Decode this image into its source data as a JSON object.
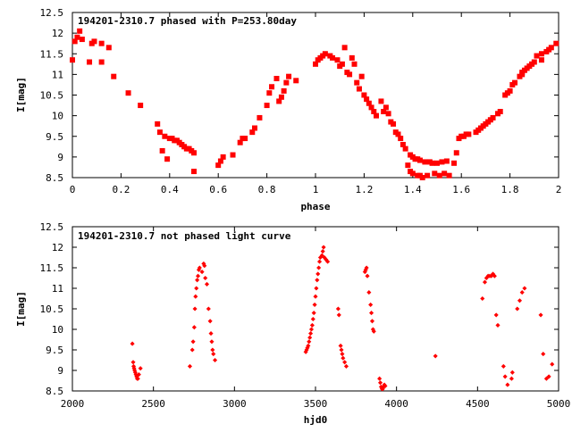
{
  "chart_data": [
    {
      "type": "scatter",
      "title": "194201-2310.7 phased with P=253.80day",
      "xlabel": "phase",
      "ylabel": "I[mag]",
      "xlim": [
        0,
        2
      ],
      "ylim": [
        12.5,
        8.5
      ],
      "y_inverted": true,
      "x_ticks": [
        0,
        0.2,
        0.4,
        0.6,
        0.8,
        1,
        1.2,
        1.4,
        1.6,
        1.8,
        2
      ],
      "x_tick_labels": [
        "0",
        "0.2",
        "0.4",
        "0.6",
        "0.8",
        "1",
        "1.2",
        "1.4",
        "1.6",
        "1.8",
        "2"
      ],
      "y_ticks": [
        8.5,
        9,
        9.5,
        10,
        10.5,
        11,
        11.5,
        12,
        12.5
      ],
      "y_tick_labels": [
        "8.5",
        "9",
        "9.5",
        "10",
        "10.5",
        "11",
        "11.5",
        "12",
        "12.5"
      ],
      "grid": false,
      "marker_color": "#ff0000",
      "series": [
        {
          "points": [
            [
              0.0,
              11.35
            ],
            [
              0.01,
              11.8
            ],
            [
              0.02,
              11.9
            ],
            [
              0.03,
              12.05
            ],
            [
              0.04,
              11.85
            ],
            [
              0.07,
              11.3
            ],
            [
              0.08,
              11.75
            ],
            [
              0.09,
              11.8
            ],
            [
              0.12,
              11.3
            ],
            [
              0.12,
              11.75
            ],
            [
              0.15,
              11.65
            ],
            [
              0.17,
              10.95
            ],
            [
              0.23,
              10.55
            ],
            [
              0.28,
              10.25
            ],
            [
              0.35,
              9.8
            ],
            [
              0.36,
              9.6
            ],
            [
              0.37,
              9.15
            ],
            [
              0.38,
              9.5
            ],
            [
              0.39,
              8.95
            ],
            [
              0.4,
              9.45
            ],
            [
              0.41,
              9.45
            ],
            [
              0.42,
              9.4
            ],
            [
              0.43,
              9.4
            ],
            [
              0.44,
              9.35
            ],
            [
              0.45,
              9.3
            ],
            [
              0.46,
              9.25
            ],
            [
              0.47,
              9.2
            ],
            [
              0.48,
              9.2
            ],
            [
              0.49,
              9.15
            ],
            [
              0.5,
              9.1
            ],
            [
              0.5,
              8.65
            ],
            [
              0.6,
              8.8
            ],
            [
              0.61,
              8.9
            ],
            [
              0.62,
              9.0
            ],
            [
              0.66,
              9.05
            ],
            [
              0.69,
              9.35
            ],
            [
              0.7,
              9.45
            ],
            [
              0.71,
              9.45
            ],
            [
              0.74,
              9.6
            ],
            [
              0.75,
              9.7
            ],
            [
              0.77,
              9.95
            ],
            [
              0.8,
              10.25
            ],
            [
              0.81,
              10.55
            ],
            [
              0.82,
              10.7
            ],
            [
              0.84,
              10.9
            ],
            [
              0.85,
              10.35
            ],
            [
              0.86,
              10.45
            ],
            [
              0.87,
              10.6
            ],
            [
              0.88,
              10.8
            ],
            [
              0.89,
              10.95
            ],
            [
              0.92,
              10.85
            ],
            [
              1.0,
              11.25
            ],
            [
              1.01,
              11.35
            ],
            [
              1.02,
              11.4
            ],
            [
              1.03,
              11.45
            ],
            [
              1.04,
              11.5
            ],
            [
              1.06,
              11.45
            ],
            [
              1.07,
              11.4
            ],
            [
              1.09,
              11.35
            ],
            [
              1.1,
              11.2
            ],
            [
              1.11,
              11.25
            ],
            [
              1.12,
              11.65
            ],
            [
              1.13,
              11.05
            ],
            [
              1.14,
              11.0
            ],
            [
              1.15,
              11.4
            ],
            [
              1.16,
              11.25
            ],
            [
              1.17,
              10.8
            ],
            [
              1.18,
              10.65
            ],
            [
              1.19,
              10.95
            ],
            [
              1.2,
              10.5
            ],
            [
              1.21,
              10.4
            ],
            [
              1.22,
              10.3
            ],
            [
              1.23,
              10.2
            ],
            [
              1.24,
              10.1
            ],
            [
              1.25,
              10.0
            ],
            [
              1.27,
              10.35
            ],
            [
              1.28,
              10.1
            ],
            [
              1.29,
              10.2
            ],
            [
              1.3,
              10.05
            ],
            [
              1.31,
              9.85
            ],
            [
              1.32,
              9.8
            ],
            [
              1.33,
              9.6
            ],
            [
              1.34,
              9.55
            ],
            [
              1.35,
              9.45
            ],
            [
              1.36,
              9.3
            ],
            [
              1.37,
              9.2
            ],
            [
              1.38,
              8.8
            ],
            [
              1.39,
              9.05
            ],
            [
              1.39,
              8.65
            ],
            [
              1.4,
              8.6
            ],
            [
              1.4,
              9.0
            ],
            [
              1.41,
              8.95
            ],
            [
              1.42,
              8.55
            ],
            [
              1.42,
              8.95
            ],
            [
              1.43,
              8.55
            ],
            [
              1.43,
              8.92
            ],
            [
              1.44,
              8.5
            ],
            [
              1.45,
              8.88
            ],
            [
              1.46,
              8.55
            ],
            [
              1.47,
              8.88
            ],
            [
              1.48,
              8.85
            ],
            [
              1.49,
              8.6
            ],
            [
              1.5,
              8.85
            ],
            [
              1.51,
              8.55
            ],
            [
              1.52,
              8.88
            ],
            [
              1.53,
              8.6
            ],
            [
              1.54,
              8.9
            ],
            [
              1.55,
              8.55
            ],
            [
              1.57,
              8.85
            ],
            [
              1.58,
              9.1
            ],
            [
              1.59,
              9.45
            ],
            [
              1.6,
              9.5
            ],
            [
              1.61,
              9.5
            ],
            [
              1.62,
              9.55
            ],
            [
              1.63,
              9.55
            ],
            [
              1.66,
              9.6
            ],
            [
              1.67,
              9.65
            ],
            [
              1.68,
              9.7
            ],
            [
              1.69,
              9.75
            ],
            [
              1.7,
              9.8
            ],
            [
              1.71,
              9.85
            ],
            [
              1.72,
              9.9
            ],
            [
              1.73,
              9.95
            ],
            [
              1.75,
              10.05
            ],
            [
              1.76,
              10.1
            ],
            [
              1.78,
              10.5
            ],
            [
              1.79,
              10.55
            ],
            [
              1.8,
              10.6
            ],
            [
              1.81,
              10.75
            ],
            [
              1.82,
              10.8
            ],
            [
              1.84,
              10.95
            ],
            [
              1.85,
              11.05
            ],
            [
              1.86,
              11.1
            ],
            [
              1.87,
              11.15
            ],
            [
              1.88,
              11.2
            ],
            [
              1.89,
              11.25
            ],
            [
              1.9,
              11.3
            ],
            [
              1.91,
              11.45
            ],
            [
              1.93,
              11.5
            ],
            [
              1.95,
              11.55
            ],
            [
              1.96,
              11.6
            ],
            [
              1.97,
              11.65
            ],
            [
              1.99,
              11.75
            ],
            [
              1.85,
              11.0
            ],
            [
              1.93,
              11.35
            ]
          ]
        }
      ]
    },
    {
      "type": "scatter",
      "title": "194201-2310.7 not phased light curve",
      "xlabel": "hjd0",
      "ylabel": "I[mag]",
      "xlim": [
        2000,
        5000
      ],
      "ylim": [
        12.5,
        8.5
      ],
      "y_inverted": true,
      "x_ticks": [
        2000,
        2500,
        3000,
        3500,
        4000,
        4500,
        5000
      ],
      "x_tick_labels": [
        "2000",
        "2500",
        "3000",
        "3500",
        "4000",
        "4500",
        "5000"
      ],
      "y_ticks": [
        8.5,
        9,
        9.5,
        10,
        10.5,
        11,
        11.5,
        12,
        12.5
      ],
      "y_tick_labels": [
        "8.5",
        "9",
        "9.5",
        "10",
        "10.5",
        "11",
        "11.5",
        "12",
        "12.5"
      ],
      "grid": false,
      "marker_color": "#ff0000",
      "series": [
        {
          "points": [
            [
              2370,
              9.65
            ],
            [
              2375,
              9.2
            ],
            [
              2378,
              9.1
            ],
            [
              2381,
              9.05
            ],
            [
              2384,
              9.0
            ],
            [
              2388,
              8.95
            ],
            [
              2392,
              8.9
            ],
            [
              2396,
              8.85
            ],
            [
              2400,
              8.8
            ],
            [
              2404,
              8.8
            ],
            [
              2410,
              8.9
            ],
            [
              2420,
              9.05
            ],
            [
              2725,
              9.1
            ],
            [
              2740,
              9.5
            ],
            [
              2745,
              9.7
            ],
            [
              2752,
              10.05
            ],
            [
              2756,
              10.5
            ],
            [
              2760,
              10.8
            ],
            [
              2765,
              11.0
            ],
            [
              2770,
              11.2
            ],
            [
              2775,
              11.3
            ],
            [
              2780,
              11.45
            ],
            [
              2785,
              11.5
            ],
            [
              2800,
              11.4
            ],
            [
              2810,
              11.6
            ],
            [
              2815,
              11.55
            ],
            [
              2820,
              11.25
            ],
            [
              2830,
              11.1
            ],
            [
              2840,
              10.5
            ],
            [
              2850,
              10.2
            ],
            [
              2855,
              9.9
            ],
            [
              2860,
              9.7
            ],
            [
              2865,
              9.5
            ],
            [
              2870,
              9.4
            ],
            [
              2880,
              9.25
            ],
            [
              3440,
              9.45
            ],
            [
              3445,
              9.5
            ],
            [
              3450,
              9.55
            ],
            [
              3455,
              9.6
            ],
            [
              3460,
              9.7
            ],
            [
              3465,
              9.8
            ],
            [
              3470,
              9.9
            ],
            [
              3475,
              10.0
            ],
            [
              3480,
              10.1
            ],
            [
              3485,
              10.25
            ],
            [
              3490,
              10.4
            ],
            [
              3495,
              10.6
            ],
            [
              3500,
              10.8
            ],
            [
              3505,
              11.0
            ],
            [
              3510,
              11.2
            ],
            [
              3515,
              11.35
            ],
            [
              3520,
              11.5
            ],
            [
              3525,
              11.65
            ],
            [
              3530,
              11.75
            ],
            [
              3540,
              11.8
            ],
            [
              3545,
              11.9
            ],
            [
              3550,
              12.0
            ],
            [
              3555,
              11.75
            ],
            [
              3565,
              11.7
            ],
            [
              3575,
              11.65
            ],
            [
              3640,
              10.5
            ],
            [
              3645,
              10.35
            ],
            [
              3655,
              9.6
            ],
            [
              3660,
              9.5
            ],
            [
              3665,
              9.4
            ],
            [
              3670,
              9.3
            ],
            [
              3680,
              9.2
            ],
            [
              3690,
              9.1
            ],
            [
              3805,
              11.4
            ],
            [
              3810,
              11.45
            ],
            [
              3815,
              11.5
            ],
            [
              3820,
              11.3
            ],
            [
              3830,
              10.9
            ],
            [
              3840,
              10.6
            ],
            [
              3845,
              10.4
            ],
            [
              3850,
              10.2
            ],
            [
              3855,
              10.0
            ],
            [
              3860,
              9.95
            ],
            [
              3895,
              8.8
            ],
            [
              3900,
              8.7
            ],
            [
              3905,
              8.6
            ],
            [
              3910,
              8.55
            ],
            [
              3915,
              8.55
            ],
            [
              3920,
              8.6
            ],
            [
              3925,
              8.65
            ],
            [
              3930,
              8.62
            ],
            [
              4240,
              9.35
            ],
            [
              4530,
              10.75
            ],
            [
              4545,
              11.15
            ],
            [
              4555,
              11.25
            ],
            [
              4565,
              11.3
            ],
            [
              4575,
              11.3
            ],
            [
              4585,
              11.3
            ],
            [
              4595,
              11.35
            ],
            [
              4605,
              11.3
            ],
            [
              4615,
              10.35
            ],
            [
              4625,
              10.1
            ],
            [
              4660,
              9.1
            ],
            [
              4670,
              8.85
            ],
            [
              4685,
              8.65
            ],
            [
              4710,
              8.8
            ],
            [
              4715,
              8.95
            ],
            [
              4745,
              10.5
            ],
            [
              4760,
              10.7
            ],
            [
              4775,
              10.9
            ],
            [
              4790,
              11.0
            ],
            [
              4890,
              10.35
            ],
            [
              4905,
              9.4
            ],
            [
              4925,
              8.8
            ],
            [
              4940,
              8.85
            ],
            [
              4960,
              9.15
            ]
          ]
        }
      ]
    }
  ]
}
